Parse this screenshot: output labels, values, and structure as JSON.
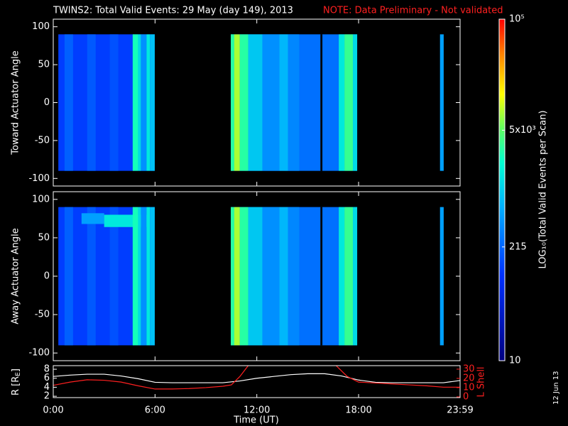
{
  "chart_data": {
    "type": "spectrogram",
    "title": "TWINS2: Total Valid Events: 29 May (day 149), 2013",
    "note": "NOTE: Data Preliminary - Not validated",
    "xlabel": "Time (UT)",
    "date_stamp": "12 Jun 13",
    "xlim": [
      0,
      1439
    ],
    "xticks": [
      {
        "value": 0,
        "label": "0:00"
      },
      {
        "value": 360,
        "label": "6:00"
      },
      {
        "value": 720,
        "label": "12:00"
      },
      {
        "value": 1080,
        "label": "18:00"
      },
      {
        "value": 1439,
        "label": "23:59"
      }
    ],
    "colorbar": {
      "label": "LOG₁₀(Total Valid Events per Scan)",
      "log": true,
      "lim": [
        10,
        100000
      ],
      "ticks": [
        10,
        215,
        {
          "value": 5000,
          "label": "5x10³"
        },
        {
          "value": 100000,
          "label": "10⁵"
        }
      ]
    },
    "panels": [
      {
        "ylabel": "Toward Actuator Angle",
        "ylim": [
          -110,
          110
        ],
        "yticks": [
          -100,
          -50,
          0,
          50,
          100
        ],
        "segments": [
          {
            "t": [
              18,
              359
            ],
            "a": [
              -90,
              90
            ],
            "v": 120
          },
          {
            "t": [
              40,
              70
            ],
            "a": [
              -90,
              90
            ],
            "v": 200
          },
          {
            "t": [
              120,
              150
            ],
            "a": [
              -90,
              90
            ],
            "v": 180
          },
          {
            "t": [
              200,
              230
            ],
            "a": [
              -90,
              90
            ],
            "v": 160
          },
          {
            "t": [
              281,
              300
            ],
            "a": [
              -90,
              90
            ],
            "v": 2500
          },
          {
            "t": [
              300,
              310
            ],
            "a": [
              -90,
              90
            ],
            "v": 1200
          },
          {
            "t": [
              310,
              330
            ],
            "a": [
              -90,
              90
            ],
            "v": 400
          },
          {
            "t": [
              330,
              342
            ],
            "a": [
              -90,
              90
            ],
            "v": 1500
          },
          {
            "t": [
              342,
              359
            ],
            "a": [
              -90,
              90
            ],
            "v": 800
          },
          {
            "t": [
              628,
              1075
            ],
            "a": [
              -90,
              90
            ],
            "v": 250
          },
          {
            "t": [
              628,
              640
            ],
            "a": [
              -90,
              90
            ],
            "v": 3000
          },
          {
            "t": [
              640,
              660
            ],
            "a": [
              -90,
              90
            ],
            "v": 8000
          },
          {
            "t": [
              660,
              690
            ],
            "a": [
              -90,
              90
            ],
            "v": 3000
          },
          {
            "t": [
              690,
              740
            ],
            "a": [
              -90,
              90
            ],
            "v": 900
          },
          {
            "t": [
              740,
              800
            ],
            "a": [
              -90,
              90
            ],
            "v": 400
          },
          {
            "t": [
              800,
              830
            ],
            "a": [
              -90,
              90
            ],
            "v": 700
          },
          {
            "t": [
              830,
              870
            ],
            "a": [
              -90,
              90
            ],
            "v": 350
          },
          {
            "t": [
              945,
              952
            ],
            "a": [
              -90,
              90
            ],
            "v": 0
          },
          {
            "t": [
              1010,
              1030
            ],
            "a": [
              -90,
              90
            ],
            "v": 1500
          },
          {
            "t": [
              1030,
              1060
            ],
            "a": [
              -90,
              90
            ],
            "v": 3500
          },
          {
            "t": [
              1060,
              1075
            ],
            "a": [
              -90,
              90
            ],
            "v": 1200
          },
          {
            "t": [
              1368,
              1381
            ],
            "a": [
              -90,
              90
            ],
            "v": 500
          }
        ]
      },
      {
        "ylabel": "Away Actuator Angle",
        "ylim": [
          -110,
          110
        ],
        "yticks": [
          -100,
          -50,
          0,
          50,
          100
        ],
        "segments": [
          {
            "t": [
              18,
              359
            ],
            "a": [
              -90,
              90
            ],
            "v": 120
          },
          {
            "t": [
              40,
              70
            ],
            "a": [
              -90,
              90
            ],
            "v": 200
          },
          {
            "t": [
              120,
              150
            ],
            "a": [
              -90,
              90
            ],
            "v": 180
          },
          {
            "t": [
              200,
              230
            ],
            "a": [
              -90,
              90
            ],
            "v": 160
          },
          {
            "t": [
              100,
              180
            ],
            "a": [
              68,
              82
            ],
            "v": 500
          },
          {
            "t": [
              180,
              330
            ],
            "a": [
              64,
              80
            ],
            "v": 1500
          },
          {
            "t": [
              281,
              300
            ],
            "a": [
              -90,
              90
            ],
            "v": 2500
          },
          {
            "t": [
              300,
              310
            ],
            "a": [
              -90,
              90
            ],
            "v": 1200
          },
          {
            "t": [
              310,
              330
            ],
            "a": [
              -90,
              90
            ],
            "v": 400
          },
          {
            "t": [
              330,
              342
            ],
            "a": [
              -90,
              90
            ],
            "v": 1500
          },
          {
            "t": [
              342,
              359
            ],
            "a": [
              -90,
              90
            ],
            "v": 800
          },
          {
            "t": [
              628,
              1075
            ],
            "a": [
              -90,
              90
            ],
            "v": 250
          },
          {
            "t": [
              628,
              640
            ],
            "a": [
              -90,
              90
            ],
            "v": 3000
          },
          {
            "t": [
              640,
              660
            ],
            "a": [
              -90,
              90
            ],
            "v": 8000
          },
          {
            "t": [
              660,
              690
            ],
            "a": [
              -90,
              90
            ],
            "v": 3000
          },
          {
            "t": [
              690,
              740
            ],
            "a": [
              -90,
              90
            ],
            "v": 900
          },
          {
            "t": [
              740,
              800
            ],
            "a": [
              -90,
              90
            ],
            "v": 400
          },
          {
            "t": [
              800,
              830
            ],
            "a": [
              -90,
              90
            ],
            "v": 700
          },
          {
            "t": [
              830,
              870
            ],
            "a": [
              -90,
              90
            ],
            "v": 350
          },
          {
            "t": [
              945,
              952
            ],
            "a": [
              -90,
              90
            ],
            "v": 0
          },
          {
            "t": [
              1010,
              1030
            ],
            "a": [
              -90,
              90
            ],
            "v": 1500
          },
          {
            "t": [
              1030,
              1060
            ],
            "a": [
              -90,
              90
            ],
            "v": 3500
          },
          {
            "t": [
              1060,
              1075
            ],
            "a": [
              -90,
              90
            ],
            "v": 1200
          },
          {
            "t": [
              1368,
              1381
            ],
            "a": [
              -90,
              90
            ],
            "v": 500
          }
        ]
      }
    ],
    "orbit": {
      "type": "line",
      "ylabel": "R [R",
      "ylabel_sub": "E",
      "ylabel_end": "]",
      "y2label": "L Shell",
      "ylim": [
        1.7,
        8.8
      ],
      "yticks": [
        2,
        4,
        6,
        8
      ],
      "y2lim": [
        -0.8,
        33.8
      ],
      "y2ticks": [
        0,
        10,
        20,
        30
      ],
      "series": [
        {
          "color": "#ffffff",
          "x": [
            0,
            60,
            120,
            180,
            240,
            300,
            360,
            420,
            480,
            540,
            600,
            660,
            720,
            780,
            840,
            900,
            960,
            1020,
            1080,
            1140,
            1200,
            1260,
            1320,
            1380,
            1439
          ],
          "values": [
            6.4,
            6.7,
            6.9,
            6.9,
            6.5,
            5.9,
            5.1,
            5.0,
            5.0,
            5.0,
            5.0,
            5.4,
            6.0,
            6.4,
            6.8,
            7.0,
            7.0,
            6.5,
            5.6,
            5.1,
            5.0,
            5.0,
            5.0,
            5.0,
            5.5
          ]
        },
        {
          "color": "#ff2020",
          "axis": "y2",
          "x": [
            0,
            60,
            120,
            180,
            240,
            300,
            360,
            420,
            480,
            540,
            600,
            630,
            660,
            690,
            1000,
            1040,
            1080,
            1140,
            1200,
            1260,
            1320,
            1380,
            1439
          ],
          "values": [
            12.5,
            16,
            18.5,
            18,
            16,
            12,
            8.5,
            8.5,
            9,
            10,
            11.5,
            13,
            22,
            34,
            34,
            22,
            16,
            15,
            14,
            13,
            12,
            10.5,
            10.5
          ]
        }
      ]
    }
  }
}
